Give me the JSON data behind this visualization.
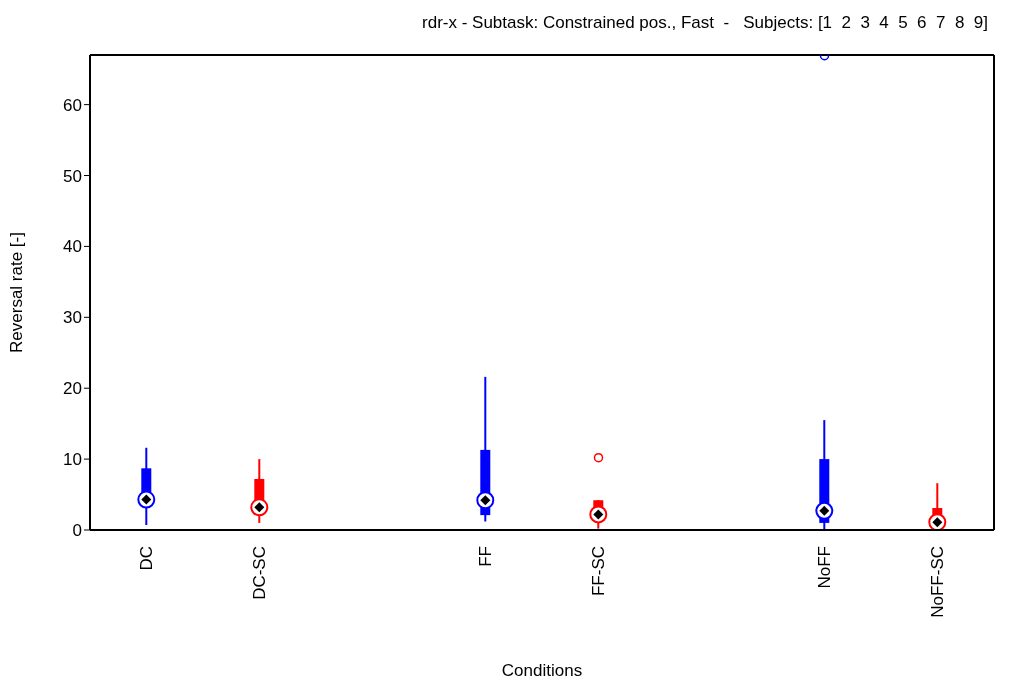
{
  "chart_data": {
    "type": "box",
    "title": "rdr-x - Subtask: Constrained pos., Fast  -   Subjects: [1  2  3  4  5  6  7  8  9]",
    "xlabel": "Conditions",
    "ylabel": "Reversal rate [-]",
    "categories": [
      "DC",
      "DC-SC",
      null,
      "FF",
      "FF-SC",
      null,
      "NoFF",
      "NoFF-SC"
    ],
    "series": [
      {
        "color": "#0000ff",
        "boxes": [
          {
            "low": 0.7,
            "q1": 3.5,
            "median": 4.3,
            "q3": 8.7,
            "high": 11.6
          },
          null,
          null,
          {
            "low": 1.2,
            "q1": 2.1,
            "median": 4.2,
            "q3": 11.3,
            "high": 21.6
          },
          null,
          null,
          {
            "low": 0,
            "q1": 1.0,
            "median": 2.7,
            "q3": 10.0,
            "high": 15.5,
            "outliers": [
              66.9
            ]
          },
          null
        ]
      },
      {
        "color": "#ff0000",
        "boxes": [
          null,
          {
            "low": 1.0,
            "q1": 2.9,
            "median": 3.2,
            "q3": 7.2,
            "high": 10.0
          },
          null,
          null,
          {
            "low": 0.2,
            "q1": 1.7,
            "median": 2.2,
            "q3": 4.2,
            "high": 4.2,
            "outliers": [
              10.2
            ]
          },
          null,
          null,
          {
            "low": 0,
            "q1": 0.4,
            "median": 1.1,
            "q3": 3.1,
            "high": 6.6
          }
        ]
      }
    ],
    "ylim": [
      0,
      67
    ],
    "yticks": [
      0,
      10,
      20,
      30,
      40,
      50,
      60
    ]
  }
}
